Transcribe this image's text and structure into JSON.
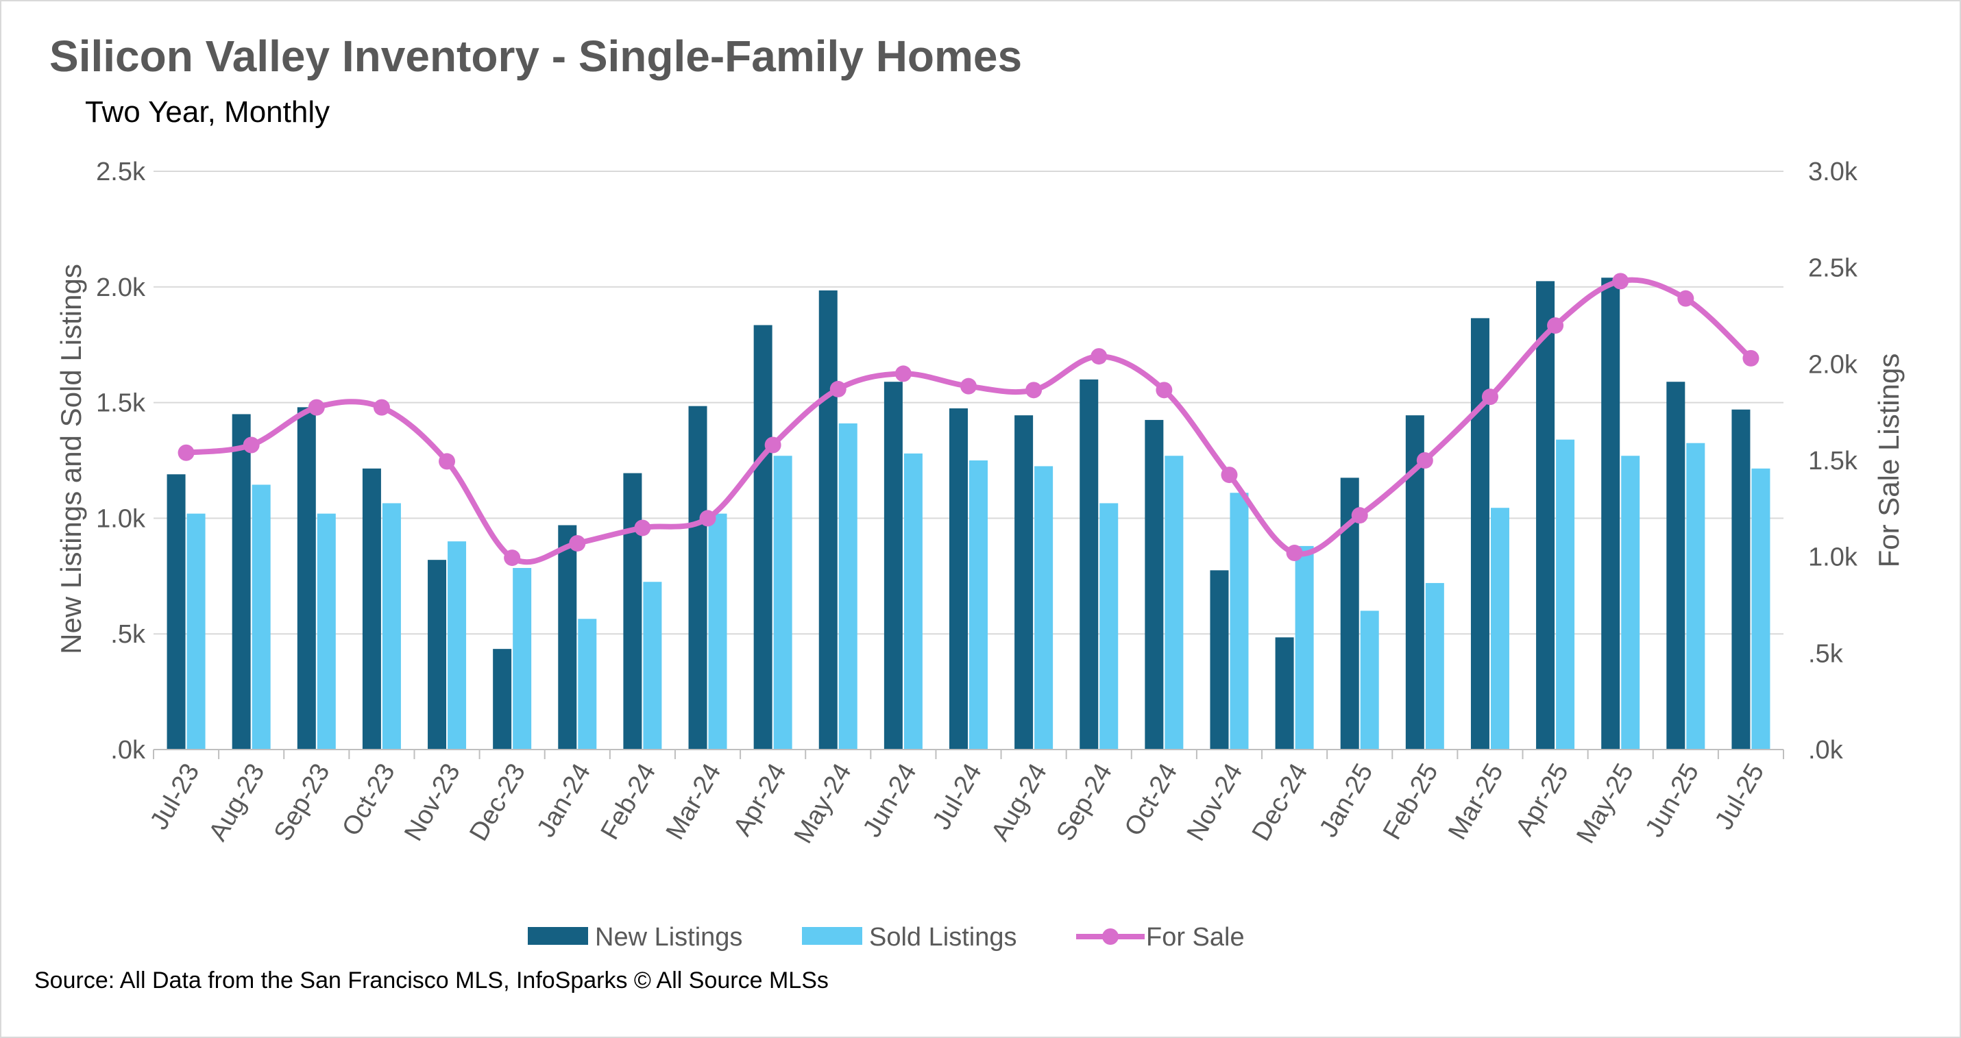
{
  "chart_data": {
    "type": "bar",
    "title": "Silicon Valley Inventory - Single-Family Homes",
    "subtitle": "Two Year, Monthly",
    "ylabel": "New Listings and Sold Listings",
    "y2label": "For Sale Listings",
    "ylim": [
      0,
      2500
    ],
    "y2lim": [
      0,
      3000
    ],
    "yticks": [
      ".0k",
      ".5k",
      "1.0k",
      "1.5k",
      "2.0k",
      "2.5k"
    ],
    "y2ticks": [
      ".0k",
      ".5k",
      "1.0k",
      "1.5k",
      "2.0k",
      "2.5k",
      "3.0k"
    ],
    "grid": true,
    "legend_position": "bottom",
    "categories": [
      "Jul-23",
      "Aug-23",
      "Sep-23",
      "Oct-23",
      "Nov-23",
      "Dec-23",
      "Jan-24",
      "Feb-24",
      "Mar-24",
      "Apr-24",
      "May-24",
      "Jun-24",
      "Jul-24",
      "Aug-24",
      "Sep-24",
      "Oct-24",
      "Nov-24",
      "Dec-24",
      "Jan-25",
      "Feb-25",
      "Mar-25",
      "Apr-25",
      "May-25",
      "Jun-25",
      "Jul-25"
    ],
    "series": [
      {
        "name": "New Listings",
        "type": "bar",
        "axis": "left",
        "color": "#156082",
        "values": [
          1190,
          1450,
          1480,
          1215,
          820,
          435,
          970,
          1195,
          1485,
          1835,
          1985,
          1590,
          1475,
          1445,
          1600,
          1425,
          775,
          485,
          1175,
          1445,
          1865,
          2025,
          2040,
          1590,
          1470
        ]
      },
      {
        "name": "Sold Listings",
        "type": "bar",
        "axis": "left",
        "color": "#61CBF3",
        "values": [
          1020,
          1145,
          1020,
          1065,
          900,
          785,
          565,
          725,
          1020,
          1270,
          1410,
          1280,
          1250,
          1225,
          1065,
          1270,
          1110,
          880,
          600,
          720,
          1045,
          1340,
          1270,
          1325,
          1215
        ]
      },
      {
        "name": "For Sale",
        "type": "line",
        "axis": "right",
        "color": "#D86ECC",
        "values": [
          1540,
          1580,
          1775,
          1775,
          1495,
          995,
          1070,
          1150,
          1200,
          1580,
          1870,
          1950,
          1885,
          1865,
          2040,
          1865,
          1425,
          1020,
          1215,
          1500,
          1830,
          2200,
          2430,
          2340,
          2030
        ]
      }
    ]
  },
  "source": "Source: All Data from the San Francisco MLS, InfoSparks © All Source MLSs"
}
